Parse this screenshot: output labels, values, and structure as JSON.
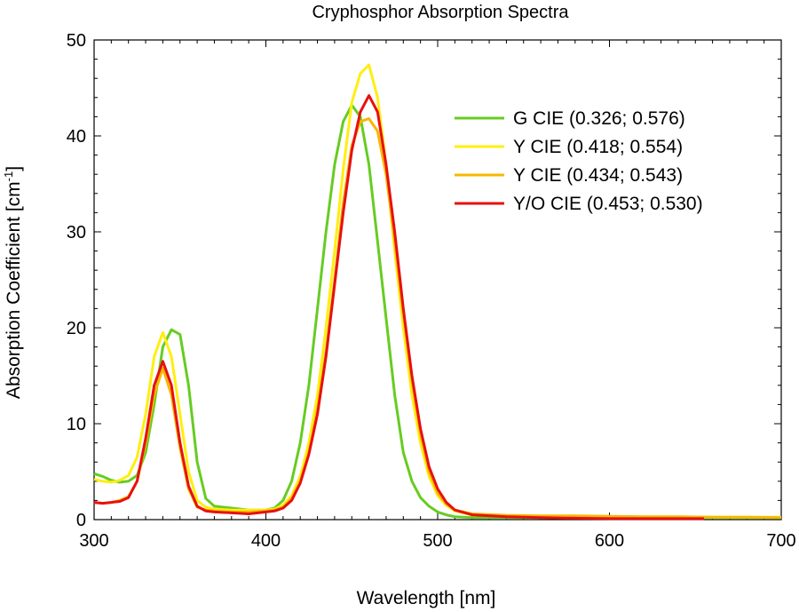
{
  "chart_data": {
    "type": "line",
    "title": "Cryphosphor Absorption Spectra",
    "xlabel": "Wavelength [nm]",
    "ylabel": "Absorption Coefficient [cm",
    "ylabel_sup": "-1",
    "ylabel_end": "]",
    "xlim": [
      300,
      700
    ],
    "ylim": [
      0,
      50
    ],
    "x_ticks": [
      300,
      400,
      500,
      600,
      700
    ],
    "y_ticks": [
      0,
      10,
      20,
      30,
      40,
      50
    ],
    "grid": false,
    "legend_position": "top-right",
    "series": [
      {
        "name": "G CIE (0.326; 0.576)",
        "color": "#66cc22",
        "x": [
          300,
          305,
          310,
          315,
          320,
          325,
          330,
          335,
          340,
          345,
          350,
          355,
          360,
          365,
          370,
          380,
          390,
          400,
          405,
          410,
          415,
          420,
          425,
          430,
          435,
          440,
          445,
          450,
          455,
          460,
          465,
          470,
          475,
          480,
          485,
          490,
          495,
          500,
          505,
          510,
          520,
          540,
          560,
          580,
          600,
          620,
          640,
          660,
          680,
          700
        ],
        "y": [
          4.8,
          4.5,
          4.1,
          3.9,
          4.0,
          4.6,
          7.0,
          12.0,
          18.0,
          19.8,
          19.3,
          14.0,
          6.0,
          2.2,
          1.4,
          1.2,
          1.0,
          1.0,
          1.2,
          2.0,
          4.0,
          8.0,
          14.0,
          22.0,
          30.0,
          37.0,
          41.5,
          43.2,
          42.0,
          37.0,
          29.0,
          21.0,
          13.0,
          7.0,
          4.0,
          2.3,
          1.4,
          0.8,
          0.5,
          0.3,
          0.2,
          0.2,
          0.2,
          0.2,
          0.2,
          0.2,
          0.2,
          0.2,
          0.2,
          0.2
        ]
      },
      {
        "name": "Y CIE (0.418; 0.554)",
        "color": "#ffee11",
        "x": [
          300,
          305,
          310,
          315,
          320,
          325,
          330,
          335,
          340,
          345,
          350,
          355,
          360,
          365,
          370,
          380,
          390,
          400,
          405,
          410,
          415,
          420,
          425,
          430,
          435,
          440,
          445,
          450,
          455,
          460,
          465,
          470,
          475,
          480,
          485,
          490,
          495,
          500,
          505,
          510,
          520,
          540,
          560,
          580,
          600,
          620,
          640,
          660,
          680,
          700
        ],
        "y": [
          4.2,
          4.0,
          3.9,
          4.1,
          4.6,
          6.5,
          11.0,
          17.0,
          19.5,
          17.0,
          11.0,
          5.0,
          2.0,
          1.3,
          1.1,
          1.0,
          1.0,
          1.0,
          1.1,
          1.5,
          2.5,
          4.5,
          8.0,
          13.0,
          20.0,
          28.0,
          36.5,
          43.5,
          46.5,
          47.4,
          44.0,
          37.0,
          28.0,
          20.0,
          13.0,
          8.0,
          4.5,
          2.5,
          1.5,
          0.9,
          0.5,
          0.4,
          0.35,
          0.35,
          0.3,
          0.3,
          0.3,
          0.25,
          0.25,
          0.25
        ]
      },
      {
        "name": "Y CIE (0.434; 0.543)",
        "color": "#f5b800",
        "x": [
          300,
          305,
          310,
          315,
          320,
          325,
          330,
          335,
          340,
          345,
          350,
          355,
          360,
          365,
          370,
          380,
          390,
          400,
          405,
          410,
          415,
          420,
          425,
          430,
          435,
          440,
          445,
          450,
          455,
          460,
          465,
          470,
          475,
          480,
          485,
          490,
          495,
          500,
          505,
          510,
          520,
          540,
          560,
          580,
          600,
          620,
          640,
          660,
          680,
          700
        ],
        "y": [
          1.8,
          1.7,
          1.8,
          2.0,
          2.4,
          4.0,
          8.0,
          13.0,
          15.8,
          13.0,
          7.5,
          3.2,
          1.3,
          1.0,
          0.9,
          0.8,
          0.8,
          0.9,
          1.0,
          1.3,
          2.2,
          4.0,
          7.0,
          11.5,
          17.5,
          25.0,
          33.0,
          39.0,
          41.5,
          41.8,
          40.5,
          36.0,
          29.0,
          21.5,
          14.5,
          9.0,
          5.0,
          2.8,
          1.6,
          1.0,
          0.6,
          0.45,
          0.4,
          0.4,
          0.35,
          0.3,
          0.3,
          0.25,
          0.25,
          0.2
        ]
      },
      {
        "name": "Y/O CIE (0.453; 0.530)",
        "color": "#e81010",
        "x": [
          300,
          305,
          310,
          315,
          320,
          325,
          330,
          335,
          340,
          345,
          350,
          355,
          360,
          365,
          370,
          380,
          390,
          400,
          405,
          410,
          415,
          420,
          425,
          430,
          435,
          440,
          445,
          450,
          455,
          460,
          465,
          470,
          475,
          480,
          485,
          490,
          495,
          500,
          505,
          510,
          520,
          540,
          560,
          580,
          600,
          620,
          640,
          655
        ],
        "y": [
          1.8,
          1.7,
          1.8,
          1.9,
          2.3,
          4.0,
          8.5,
          14.0,
          16.5,
          14.0,
          8.0,
          3.5,
          1.4,
          0.9,
          0.8,
          0.7,
          0.6,
          0.8,
          0.9,
          1.2,
          2.0,
          3.8,
          6.8,
          11.0,
          17.0,
          24.5,
          32.0,
          38.5,
          42.5,
          44.2,
          42.5,
          37.0,
          30.0,
          22.0,
          15.0,
          9.5,
          5.5,
          3.2,
          1.8,
          1.0,
          0.5,
          0.3,
          0.2,
          0.15,
          0.1,
          0.1,
          0.1,
          0.1
        ]
      }
    ]
  }
}
